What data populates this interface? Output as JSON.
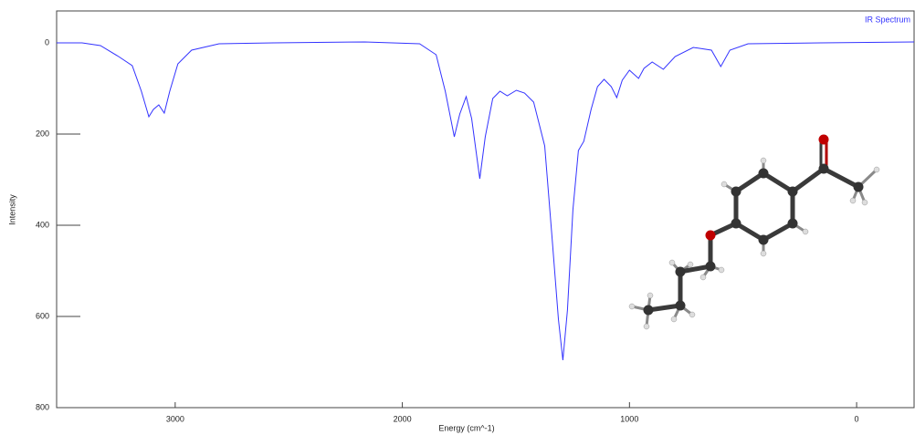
{
  "chart_data": {
    "type": "line",
    "x_label": "Energy (cm^-1)",
    "y_label": "Intensity",
    "x": [
      3522,
      3410,
      3329,
      3249,
      3189,
      3149,
      3116,
      3096,
      3072,
      3048,
      3024,
      2988,
      2928,
      2807,
      2566,
      2165,
      1924,
      1851,
      1811,
      1771,
      1747,
      1719,
      1695,
      1659,
      1635,
      1602,
      1570,
      1538,
      1498,
      1462,
      1422,
      1373,
      1341,
      1313,
      1293,
      1273,
      1249,
      1225,
      1201,
      1169,
      1141,
      1112,
      1080,
      1056,
      1032,
      1000,
      960,
      936,
      900,
      851,
      799,
      719,
      639,
      598,
      558,
      478,
      157,
      -253
    ],
    "series": [
      {
        "name": "IR Spectrum",
        "color": "#3333ff",
        "values": [
          0,
          0,
          6,
          30,
          50,
          106,
          162,
          146,
          136,
          154,
          106,
          46,
          16,
          2,
          0,
          -2,
          2,
          26,
          106,
          206,
          156,
          118,
          166,
          298,
          206,
          122,
          106,
          116,
          104,
          110,
          130,
          226,
          426,
          606,
          696,
          586,
          366,
          236,
          216,
          146,
          96,
          80,
          96,
          120,
          82,
          60,
          78,
          56,
          42,
          58,
          30,
          10,
          16,
          52,
          16,
          2,
          0,
          -2
        ]
      }
    ],
    "xlim": [
      3522,
      -253
    ],
    "ylim": [
      -70,
      800
    ],
    "xticks": [
      3000,
      2000,
      1000,
      0
    ],
    "yticks": [
      0,
      200,
      400,
      600,
      800
    ],
    "inverted_y": true,
    "legend": "top-right"
  }
}
